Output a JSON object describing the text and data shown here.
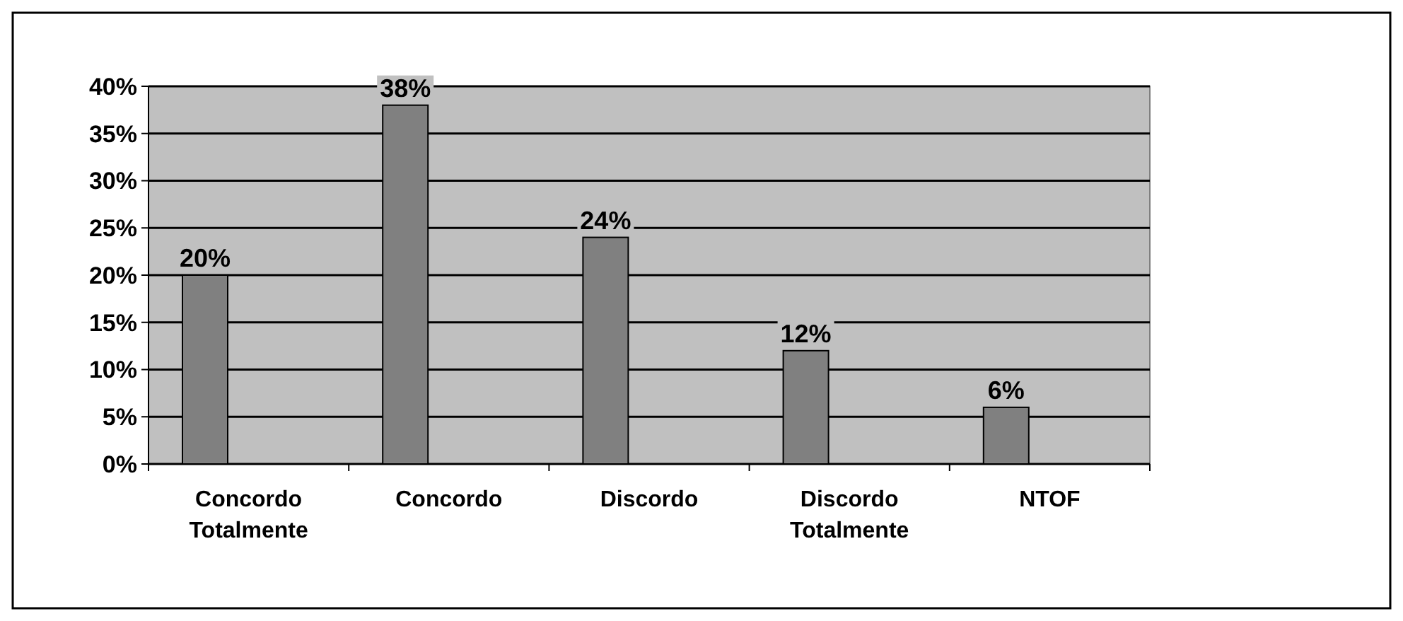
{
  "chart_data": {
    "type": "bar",
    "categories": [
      "Concordo Totalmente",
      "Concordo",
      "Discordo",
      "Discordo Totalmente",
      "NTOF"
    ],
    "values": [
      20,
      38,
      24,
      12,
      6
    ],
    "color": "#808080",
    "value_labels": [
      "20%",
      "38%",
      "24%",
      "12%",
      "6%"
    ],
    "ylim": [
      0,
      40
    ],
    "yticks": [
      {
        "value": 0,
        "label": "0%"
      },
      {
        "value": 5,
        "label": "5%"
      },
      {
        "value": 10,
        "label": "10%"
      },
      {
        "value": 15,
        "label": "15%"
      },
      {
        "value": 20,
        "label": "20%"
      },
      {
        "value": 25,
        "label": "25%"
      },
      {
        "value": 30,
        "label": "30%"
      },
      {
        "value": 35,
        "label": "35%"
      },
      {
        "value": 40,
        "label": "40%"
      }
    ],
    "grid": "y"
  }
}
